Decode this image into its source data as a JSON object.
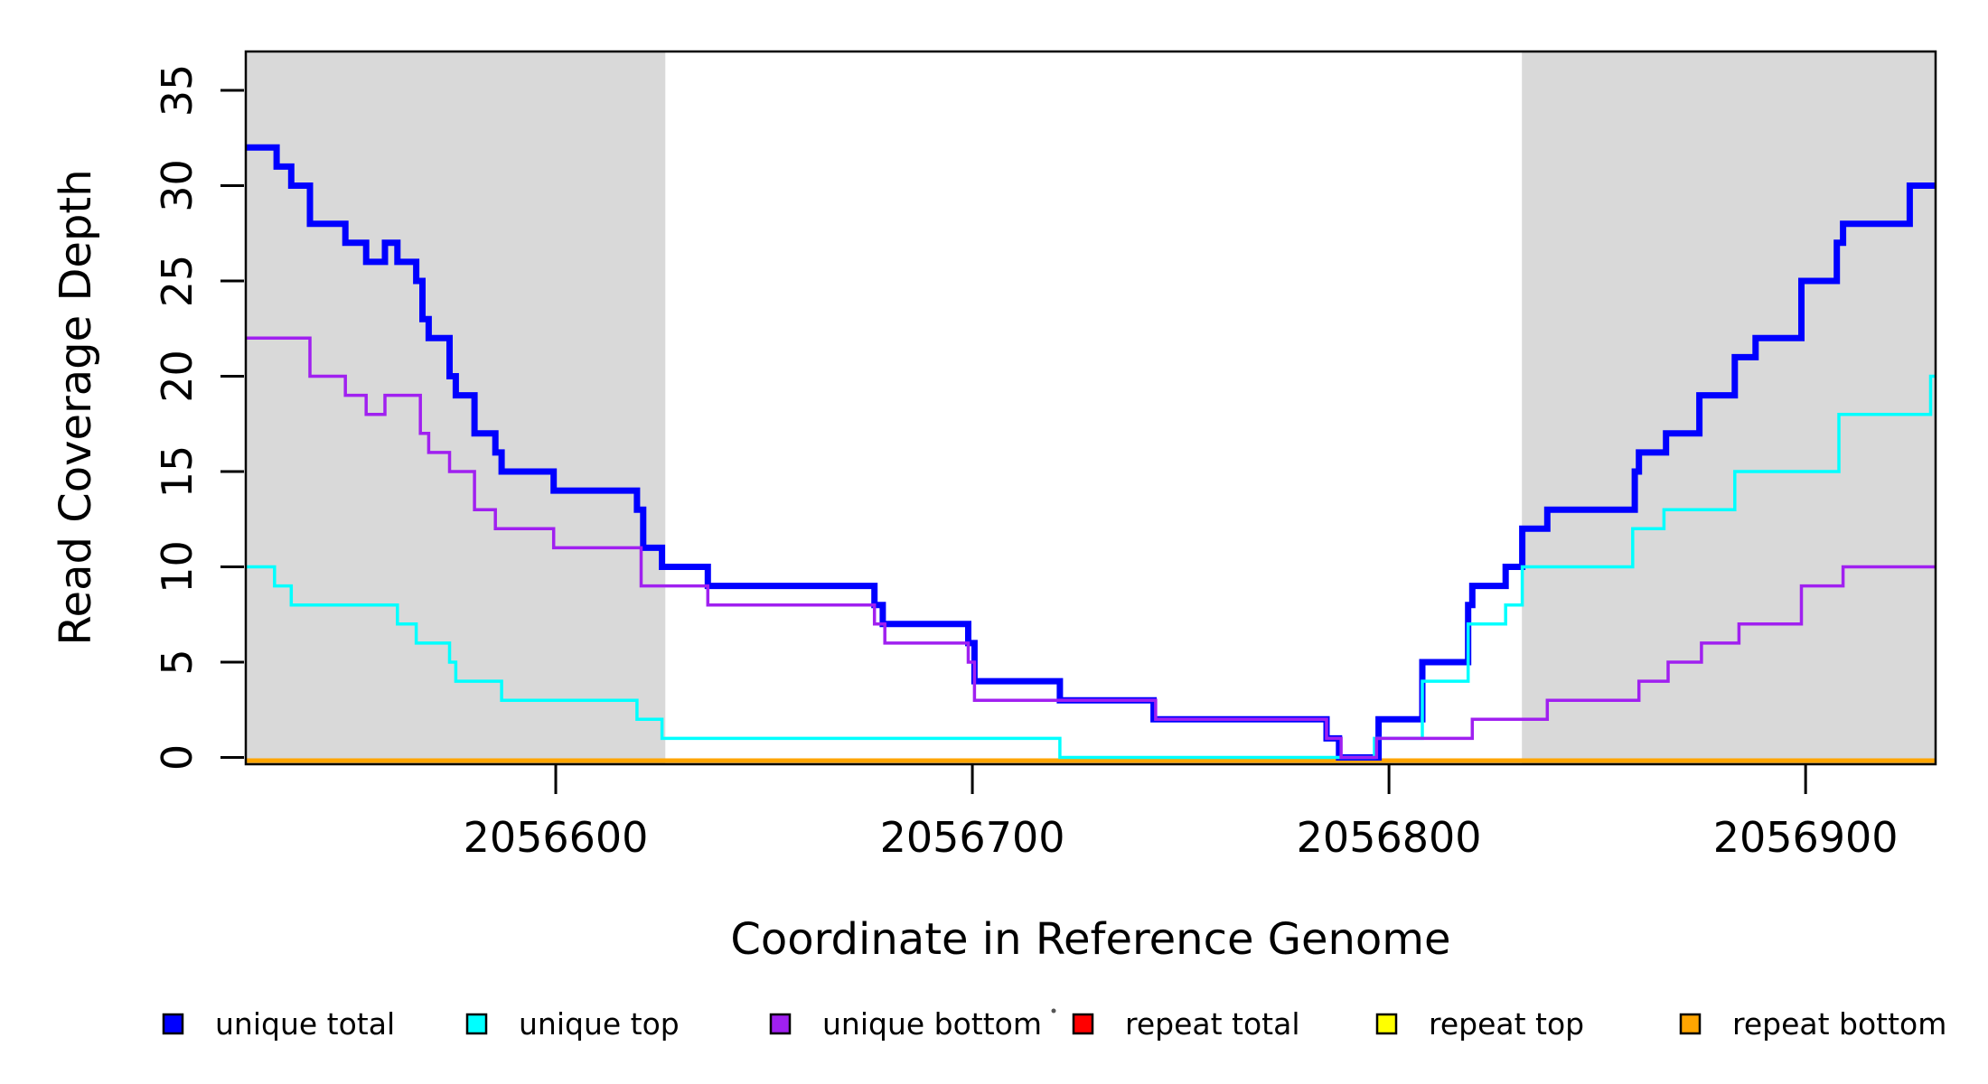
{
  "figure": {
    "background": "#FFFFFF",
    "plot_bg": "#FFFFFF",
    "shade_color": "#D9D9D9",
    "axis_color": "#000000"
  },
  "chart_data": {
    "type": "line",
    "subtype": "step",
    "title": "",
    "xlabel": "Coordinate in Reference Genome",
    "ylabel": "Read Coverage Depth",
    "xlim": [
      2056525.6,
      2056931.2
    ],
    "ylim": [
      0,
      35
    ],
    "x_ticks": [
      2056600,
      2056700,
      2056800,
      2056900
    ],
    "y_ticks": [
      0,
      5,
      10,
      15,
      20,
      25,
      30,
      35
    ],
    "grid": "off",
    "legend_position": "bottom",
    "shaded_regions": [
      {
        "x0": 2056525.6,
        "x1": 2056626.3
      },
      {
        "x0": 2056831.9,
        "x1": 2056931.2
      }
    ],
    "series": [
      {
        "name": "repeat total",
        "color": "#FF0000",
        "width": 3.5,
        "start": 0,
        "breaks": []
      },
      {
        "name": "repeat top",
        "color": "#FFFF00",
        "width": 3.5,
        "start": 0,
        "breaks": []
      },
      {
        "name": "repeat bottom",
        "color": "#FFA500",
        "width": 5,
        "start": 0,
        "breaks": []
      },
      {
        "name": "unique total",
        "color": "#0000FF",
        "width": 7,
        "start": 32,
        "breaks": [
          [
            2056533,
            31
          ],
          [
            2056536.5,
            30
          ],
          [
            2056541,
            28
          ],
          [
            2056549.5,
            27
          ],
          [
            2056554.5,
            26
          ],
          [
            2056559,
            27
          ],
          [
            2056562,
            26
          ],
          [
            2056566.5,
            25
          ],
          [
            2056568,
            23
          ],
          [
            2056569.5,
            22
          ],
          [
            2056574.5,
            20
          ],
          [
            2056576,
            19
          ],
          [
            2056580.5,
            17
          ],
          [
            2056585.5,
            16
          ],
          [
            2056587,
            15
          ],
          [
            2056599.5,
            14
          ],
          [
            2056619.5,
            13
          ],
          [
            2056621,
            11
          ],
          [
            2056625.5,
            10
          ],
          [
            2056636.5,
            9
          ],
          [
            2056676.5,
            8
          ],
          [
            2056678.5,
            7
          ],
          [
            2056699,
            6
          ],
          [
            2056700.5,
            4
          ],
          [
            2056721,
            3
          ],
          [
            2056743.5,
            2
          ],
          [
            2056785,
            1
          ],
          [
            2056788,
            0
          ],
          [
            2056797.5,
            2
          ],
          [
            2056808,
            5
          ],
          [
            2056819,
            8
          ],
          [
            2056820,
            9
          ],
          [
            2056828,
            10
          ],
          [
            2056832,
            12
          ],
          [
            2056838,
            13
          ],
          [
            2056859,
            15
          ],
          [
            2056860,
            16
          ],
          [
            2056866.5,
            17
          ],
          [
            2056874.5,
            19
          ],
          [
            2056883,
            21
          ],
          [
            2056888,
            22
          ],
          [
            2056899,
            25
          ],
          [
            2056907.5,
            27
          ],
          [
            2056909,
            28
          ],
          [
            2056925,
            30
          ]
        ]
      },
      {
        "name": "unique top",
        "color": "#00FFFF",
        "width": 3.5,
        "start": 10,
        "breaks": [
          [
            2056532.5,
            9
          ],
          [
            2056536.5,
            8
          ],
          [
            2056562,
            7
          ],
          [
            2056566.5,
            6
          ],
          [
            2056574.5,
            5
          ],
          [
            2056576,
            4
          ],
          [
            2056587,
            3
          ],
          [
            2056619.5,
            2
          ],
          [
            2056625.5,
            1
          ],
          [
            2056721,
            0
          ],
          [
            2056796.5,
            1
          ],
          [
            2056808,
            4
          ],
          [
            2056819,
            7
          ],
          [
            2056828,
            8
          ],
          [
            2056832,
            10
          ],
          [
            2056858.5,
            12
          ],
          [
            2056866,
            13
          ],
          [
            2056883,
            15
          ],
          [
            2056908,
            18
          ],
          [
            2056930,
            20
          ]
        ]
      },
      {
        "name": "unique bottom",
        "color": "#A020F0",
        "width": 3.5,
        "start": 22,
        "breaks": [
          [
            2056541,
            20
          ],
          [
            2056549.5,
            19
          ],
          [
            2056554.5,
            18
          ],
          [
            2056559,
            19
          ],
          [
            2056567.5,
            17
          ],
          [
            2056569.5,
            16
          ],
          [
            2056574.5,
            15
          ],
          [
            2056580.5,
            13
          ],
          [
            2056585.5,
            12
          ],
          [
            2056599.5,
            11
          ],
          [
            2056620.5,
            9
          ],
          [
            2056636.5,
            8
          ],
          [
            2056676.5,
            7
          ],
          [
            2056679,
            6
          ],
          [
            2056699,
            5
          ],
          [
            2056700.5,
            3
          ],
          [
            2056744,
            2
          ],
          [
            2056785,
            1
          ],
          [
            2056788.5,
            0
          ],
          [
            2056797,
            1
          ],
          [
            2056820,
            2
          ],
          [
            2056838,
            3
          ],
          [
            2056860,
            4
          ],
          [
            2056867,
            5
          ],
          [
            2056875,
            6
          ],
          [
            2056884,
            7
          ],
          [
            2056899,
            9
          ],
          [
            2056909,
            10
          ]
        ]
      }
    ],
    "legend": {
      "items": [
        {
          "label": "unique total",
          "color": "#0000FF"
        },
        {
          "label": "unique top",
          "color": "#00FFFF"
        },
        {
          "label": "unique bottom",
          "color": "#A020F0"
        },
        {
          "label": "repeat total",
          "color": "#FF0000"
        },
        {
          "label": "repeat top",
          "color": "#FFFF00"
        },
        {
          "label": "repeat bottom",
          "color": "#FFA500"
        }
      ]
    },
    "x_tick_labels": [
      "2056600",
      "2056700",
      "2056800",
      "2056900"
    ],
    "y_tick_labels": [
      "0",
      "5",
      "10",
      "15",
      "20",
      "25",
      "30",
      "35"
    ]
  }
}
